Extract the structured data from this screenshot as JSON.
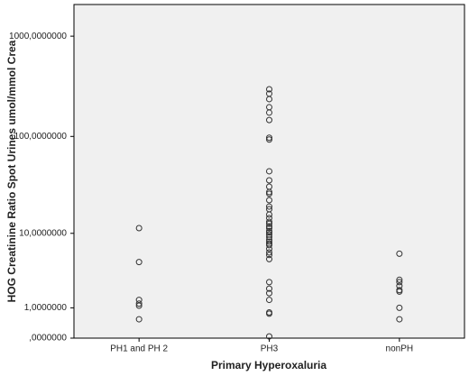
{
  "chart_data": {
    "type": "strip",
    "x_label": "Primary Hyperoxaluria",
    "y_label": "HOG Creatinine Ratio Spot Urines umol/mmol Crea",
    "yscale": "log1p",
    "categories": [
      "PH1 and PH 2",
      "PH3",
      "nonPH"
    ],
    "values": [
      [
        11.4,
        4.7,
        1.4,
        1.2,
        1.1,
        0.54
      ],
      [
        296,
        268,
        236,
        196,
        173,
        146,
        97,
        93,
        44.5,
        36,
        31,
        27.3,
        26.2,
        22.5,
        19.3,
        18.1,
        15.9,
        14.6,
        13.3,
        12.7,
        11.9,
        11.4,
        10.6,
        10.2,
        9.7,
        9.1,
        8.5,
        8.1,
        7.7,
        7.4,
        6.7,
        6.1,
        5.7,
        5.1,
        2.6,
        2.1,
        1.8,
        1.4,
        0.8,
        0.75,
        0.04
      ],
      [
        5.9,
        2.8,
        2.6,
        2.3,
        2.0,
        1.9,
        1.0,
        0.54
      ]
    ],
    "color": "#333333",
    "ylim": [
      0,
      2065
    ],
    "yticks": [
      {
        "value": 0,
        "label": ",0000000"
      },
      {
        "value": 1,
        "label": "1,0000000"
      },
      {
        "value": 10,
        "label": "10,0000000"
      },
      {
        "value": 100,
        "label": "100,0000000"
      },
      {
        "value": 1000,
        "label": "1000,0000000"
      }
    ]
  }
}
